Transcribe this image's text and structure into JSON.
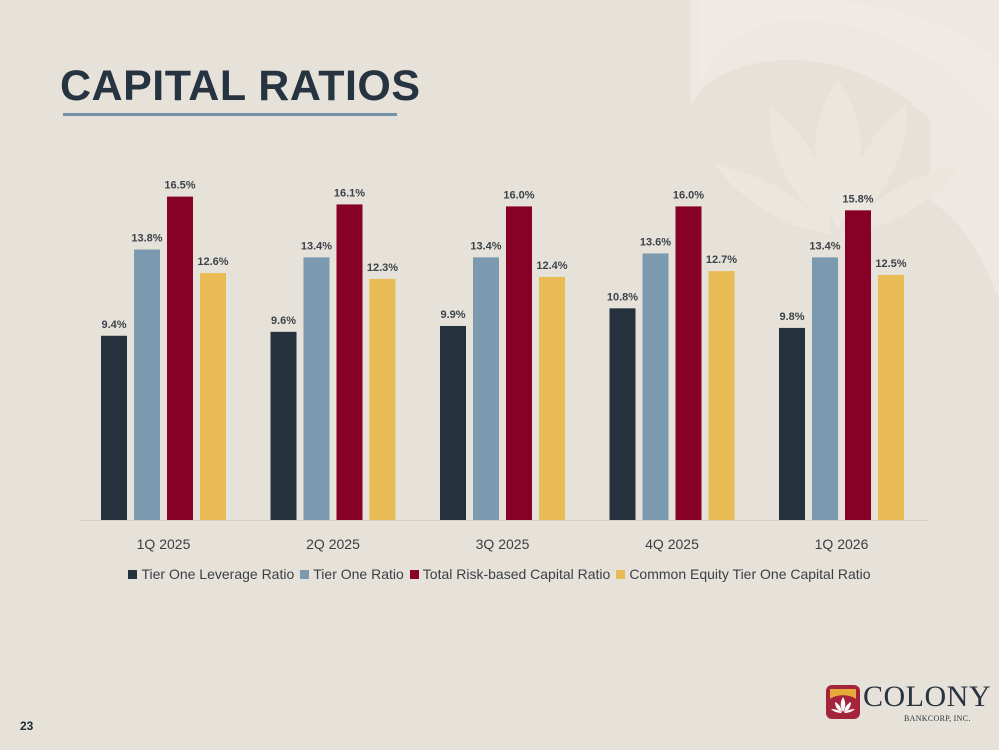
{
  "slide": {
    "title": "CAPITAL RATIOS",
    "page_number": "23"
  },
  "logo": {
    "name": "COLONY",
    "subtitle": "BANKCORP, INC."
  },
  "colors": {
    "background": "#e6e2d9",
    "title": "#263340",
    "underline": "#7591a8",
    "tier_one_leverage": "#25313d",
    "tier_one": "#7b9ab0",
    "total_risk_based": "#870028",
    "cet1": "#e8bb55"
  },
  "chart_data": {
    "type": "bar",
    "title": "",
    "xlabel": "",
    "ylabel": "",
    "ylim": [
      0,
      18
    ],
    "grid": false,
    "legend_position": "bottom",
    "categories": [
      "1Q 2025",
      "2Q 2025",
      "3Q 2025",
      "4Q 2025",
      "1Q 2026"
    ],
    "series": [
      {
        "name": "Tier One Leverage Ratio",
        "color": "#25313d",
        "values": [
          9.4,
          9.6,
          9.9,
          10.8,
          9.8
        ],
        "labels": [
          "9.4%",
          "9.6%",
          "9.9%",
          "10.8%",
          "9.8%"
        ]
      },
      {
        "name": "Tier One Ratio",
        "color": "#7b9ab0",
        "values": [
          13.8,
          13.4,
          13.4,
          13.6,
          13.4
        ],
        "labels": [
          "13.8%",
          "13.4%",
          "13.4%",
          "13.6%",
          "13.4%"
        ]
      },
      {
        "name": "Total Risk-based Capital Ratio",
        "color": "#870028",
        "values": [
          16.5,
          16.1,
          16.0,
          16.0,
          15.8
        ],
        "labels": [
          "16.5%",
          "16.1%",
          "16.0%",
          "16.0%",
          "15.8%"
        ]
      },
      {
        "name": "Common Equity Tier One Capital Ratio",
        "color": "#e8bb55",
        "values": [
          12.6,
          12.3,
          12.4,
          12.7,
          12.5
        ],
        "labels": [
          "12.6%",
          "12.3%",
          "12.4%",
          "12.7%",
          "12.5%"
        ]
      }
    ]
  }
}
